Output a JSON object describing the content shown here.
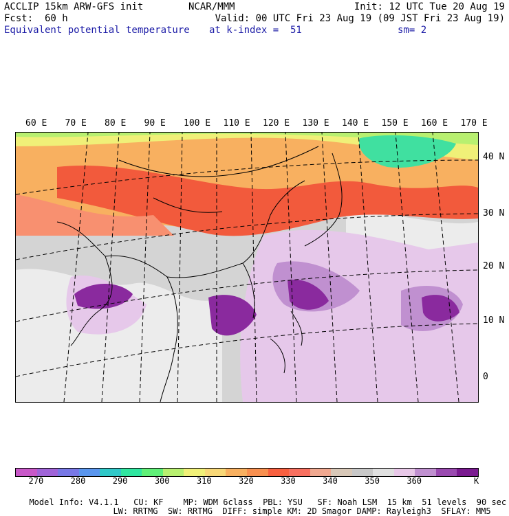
{
  "header": {
    "model": "ACCLIP 15km ARW-GFS init",
    "org": "NCAR/MMM",
    "init": "Init: 12 UTC Tue 20 Aug 19",
    "fcst": "Fcst:  60 h",
    "valid": "Valid: 00 UTC Fri 23 Aug 19 (09 JST Fri 23 Aug 19)",
    "field": "Equivalent potential temperature",
    "level": "at k-index =  51",
    "smoothing": "sm= 2"
  },
  "map": {
    "projection": "lambert-conformal",
    "field_colors": {
      "cold_north": "#f0a030",
      "warm_band": "#f25a3c",
      "tropics_gray": "#c8c8c8",
      "moist_purple": "#8a2a9e",
      "dry_cyan": "#40e0a0"
    },
    "lon_labels": [
      "60 E",
      "70 E",
      "80 E",
      "90 E",
      "100 E",
      "110 E",
      "120 E",
      "130 E",
      "140 E",
      "150 E",
      "160 E",
      "170 E"
    ],
    "lat_labels": [
      "40 N",
      "30 N",
      "20 N",
      "10 N",
      "0"
    ]
  },
  "colorbar": {
    "colors": [
      "#c858c8",
      "#a064d8",
      "#7878e6",
      "#5a96ee",
      "#30c8c8",
      "#30e6a0",
      "#60f078",
      "#b8f070",
      "#f0f078",
      "#f8d878",
      "#f8b060",
      "#f89050",
      "#f86040",
      "#f87060",
      "#f0a890",
      "#d8c8b8",
      "#c8c8c8",
      "#e0e0e0",
      "#e8c8e8",
      "#c090d0",
      "#9a4ab0",
      "#7a1a90"
    ],
    "labels": [
      "270",
      "280",
      "290",
      "300",
      "310",
      "320",
      "330",
      "340",
      "350",
      "360"
    ],
    "unit": "K"
  },
  "footer": {
    "line1": [
      "Model Info: V4.1.1",
      "CU: KF",
      "MP: WDM 6class",
      "PBL: YSU",
      "SF: Noah LSM",
      "15 km",
      "51 levels",
      "90 sec"
    ],
    "line2": [
      "LW: RRTMG",
      "SW: RRTMG",
      "DIFF: simple",
      "KM: 2D Smagor",
      "DAMP: Rayleigh3",
      "SFLAY: MM5"
    ]
  }
}
